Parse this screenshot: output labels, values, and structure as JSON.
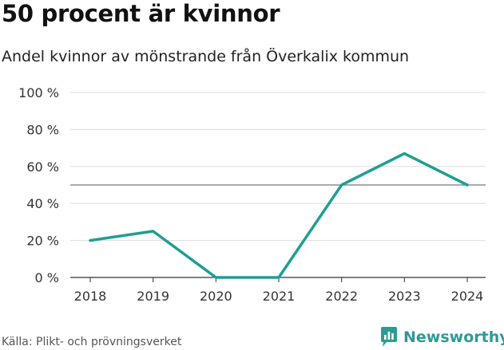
{
  "title": "50 procent är kvinnor",
  "subtitle": "Andel kvinnor av mönstrande från Överkalix kommun",
  "source": "Källa: Plikt- och prövningsverket",
  "brand": {
    "name": "Newsworthy",
    "logo_icon": "newsworthy-logo-icon"
  },
  "colors": {
    "line": "#1f9e93",
    "grid": "#dddddd",
    "reference": "#777777",
    "brand": "#2e9a94"
  },
  "chart_data": {
    "type": "line",
    "title": "50 procent är kvinnor",
    "subtitle": "Andel kvinnor av mönstrande från Överkalix kommun",
    "x": [
      "2018",
      "2019",
      "2020",
      "2021",
      "2022",
      "2023",
      "2024"
    ],
    "series": [
      {
        "values": [
          20,
          25,
          0,
          0,
          50,
          67,
          50
        ]
      }
    ],
    "ylim": [
      0,
      100
    ],
    "yticks": [
      0,
      20,
      40,
      60,
      80,
      100
    ],
    "ytick_labels": [
      "0 %",
      "20 %",
      "40 %",
      "60 %",
      "80 %",
      "100 %"
    ],
    "reference_line": 50,
    "grid": true,
    "xlabel": "",
    "ylabel": ""
  }
}
